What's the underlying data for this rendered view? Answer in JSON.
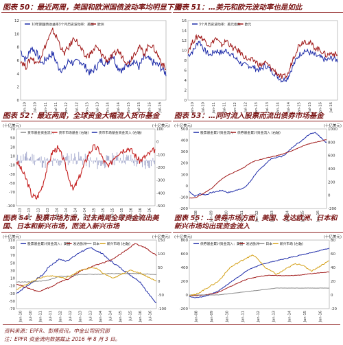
{
  "panels": [
    {
      "title": "图表 50：最近两周，美国和欧洲国债波动率均明显下滑"
    },
    {
      "title": "图表 51：…美元和欧元波动率也是如此"
    },
    {
      "title": "图表 52：最近两周，全球资金大幅流入货币基金"
    },
    {
      "title": "图表 53：…同时流入股票而流出债券市场基金"
    },
    {
      "title": "图表 54：股票市场方面，过去两周全球资金流出美国、日本和新兴市场，而流入新兴市场"
    },
    {
      "title": "图表 55：…债券市场方面，美国、发达欧洲、日本和新兴市场均出现资金流入"
    }
  ],
  "footer": {
    "source": "资料来源：EPFR、彭博资讯，中金公司研究部",
    "note": "注：EPFR 资金流向数据截止 2016 年 8 月 3 日。"
  },
  "chart_data": [
    {
      "type": "line",
      "legend": [
        "10年期国债收益率3个月历史波动率：美国",
        "欧洲"
      ],
      "colors": [
        "#1c2aa8",
        "#a01818"
      ],
      "ylim": [
        0,
        12
      ],
      "yticks": [
        "0",
        "2",
        "4",
        "6",
        "8",
        "10",
        "12"
      ],
      "xticks": [
        "Jan-10",
        "Jul-10",
        "Jan-11",
        "Jul-11",
        "Jan-12",
        "Jul-12",
        "Jan-13",
        "Jul-13",
        "Jan-14",
        "Jul-14",
        "Jan-15",
        "Jul-15",
        "Jan-16",
        "Jul-16"
      ],
      "series": [
        {
          "name": "10年期国债收益率3个月历史波动率：美国",
          "values": [
            7.5,
            6,
            8,
            7,
            5.5,
            6.5,
            7,
            5,
            4.5,
            6,
            5.5,
            6,
            5,
            4,
            5,
            6,
            5.5,
            7,
            5,
            4.5,
            5.5,
            6,
            5,
            6.5,
            6,
            5.5,
            5,
            4
          ]
        },
        {
          "name": "欧洲",
          "values": [
            6,
            5,
            6.5,
            5.5,
            7,
            9,
            10.5,
            9,
            7,
            8,
            9.5,
            8,
            6.5,
            7,
            8,
            7,
            6,
            6.5,
            7.5,
            6.5,
            5.5,
            7,
            8,
            7,
            8.5,
            7.5,
            6,
            4.5
          ]
        }
      ]
    },
    {
      "type": "line",
      "legend": [
        "3个月历史波动率：美元指数",
        "欧元"
      ],
      "colors": [
        "#1c2aa8",
        "#a01818"
      ],
      "ylim": [
        0,
        16
      ],
      "yticks": [
        "0",
        "2",
        "4",
        "6",
        "8",
        "10",
        "12",
        "14",
        "16"
      ],
      "xticks": [
        "Jan-10",
        "Jul-10",
        "Jan-11",
        "Jul-11",
        "Jan-12",
        "Jul-12",
        "Jan-13",
        "Jul-13",
        "Jan-14",
        "Jul-14",
        "Jan-15",
        "Jul-15",
        "Jan-16",
        "Jul-16"
      ],
      "series": [
        {
          "name": "3个月历史波动率：美元指数",
          "values": [
            9,
            10,
            12,
            10,
            9,
            10,
            9.5,
            10,
            9,
            8,
            7,
            7,
            6.5,
            6,
            7,
            6,
            5,
            4,
            4.5,
            7,
            9,
            10,
            9.5,
            9,
            8.5,
            8,
            8.5,
            8
          ]
        },
        {
          "name": "欧元",
          "values": [
            10,
            12,
            13,
            12,
            11,
            12.5,
            11,
            12,
            10.5,
            10,
            9,
            8,
            8,
            7,
            7.5,
            6.5,
            5.5,
            4.5,
            5,
            8.5,
            11,
            12,
            11.5,
            10.5,
            10,
            9,
            9.5,
            9
          ]
        }
      ]
    },
    {
      "type": "bar",
      "yunit_left": "(十亿美元)",
      "yunit_right": "(十亿美元)",
      "legend": [
        "货币基金资金流入",
        "货币市场基金 (右轴)",
        "货币市场基金资金流入 (右轴)"
      ],
      "ylim_left": [
        -100,
        70
      ],
      "ylim_right": [
        -500,
        100
      ],
      "yticks_left": [
        "70",
        "50",
        "30",
        "10",
        "-10",
        "-30",
        "-50",
        "-70",
        "-100"
      ],
      "yticks_right": [
        "100",
        "0",
        "-100",
        "-200",
        "-300",
        "-400",
        "-500"
      ],
      "xticks": [
        "Jan-13",
        "Apr-13",
        "Jul-13",
        "Oct-13",
        "Jan-14",
        "Apr-14",
        "Jul-14",
        "Oct-14",
        "Jan-15",
        "Apr-15",
        "Jul-15",
        "Oct-15",
        "Jan-16",
        "Apr-16",
        "Jul-16"
      ],
      "series": [
        {
          "name": "累计 (右轴)",
          "values": [
            -150,
            -220,
            -300,
            -420,
            -440,
            -350,
            -200,
            -80,
            -50,
            -120,
            -250,
            -380,
            -300,
            -200,
            -100,
            -40,
            -60,
            -150,
            -200,
            -120,
            -80,
            -60,
            -50,
            -100,
            -150,
            -120,
            -90,
            -60
          ]
        }
      ]
    },
    {
      "type": "line",
      "yunit_left": "(十亿美元)",
      "yunit_right": "(十亿美元)",
      "legend": [
        "股票基金累计资金流入",
        "债券基金累计资金流入 (右轴)"
      ],
      "colors": [
        "#1c2aa8",
        "#a01818"
      ],
      "ylim_left": [
        -200,
        500
      ],
      "ylim_right": [
        -200,
        1000
      ],
      "yticks_left": [
        "500",
        "400",
        "300",
        "200",
        "100",
        "0",
        "-100",
        "-200"
      ],
      "yticks_right": [
        "1000",
        "800",
        "600",
        "400",
        "200",
        "0",
        "-200"
      ],
      "xticks": [
        "Jan-08",
        "Jan-09",
        "Jan-10",
        "Jan-11",
        "Jan-12",
        "Jan-13",
        "Jan-14",
        "Jan-15",
        "Jan-16"
      ],
      "series": [
        {
          "name": "股票基金累计资金流入",
          "values": [
            -50,
            -90,
            -70,
            -80,
            -60,
            -50,
            -40,
            -60,
            -50,
            -30,
            -20,
            30,
            100,
            150,
            200,
            240,
            250,
            260,
            300,
            350,
            380,
            420,
            460,
            470,
            420,
            380
          ]
        },
        {
          "name": "债券基金累计资金流入 (右轴)",
          "values": [
            -40,
            -40,
            0,
            50,
            100,
            180,
            250,
            300,
            340,
            380,
            420,
            480,
            520,
            540,
            560,
            580,
            600,
            620,
            650,
            680,
            720,
            750,
            780,
            800,
            820,
            840
          ]
        }
      ]
    },
    {
      "type": "line",
      "yunit_left": "(十亿美元)",
      "yunit_right": "(十亿美元)",
      "legend": [
        "股票基金累计资金流入：美国",
        "发达欧洲",
        "日本",
        "新兴市场 (右轴)"
      ],
      "colors": [
        "#1c2aa8",
        "#a01818",
        "#888888",
        "#d4a017"
      ],
      "ylim_left": [
        -70,
        110
      ],
      "ylim_right": [
        -100,
        150
      ],
      "yticks_left": [
        "110",
        "90",
        "70",
        "50",
        "30",
        "10",
        "-10",
        "-30",
        "-50",
        "-70"
      ],
      "yticks_right": [
        "150",
        "100",
        "50",
        "0",
        "-50",
        "-100"
      ],
      "xticks": [
        "Jan-10",
        "Jul-10",
        "Jan-11",
        "Jul-11",
        "Jan-12",
        "Jul-12",
        "Jan-13",
        "Jul-13",
        "Jan-14",
        "Jul-14",
        "Jan-15",
        "Jul-15",
        "Jan-16",
        "Jul-16"
      ],
      "series": [
        {
          "name": "股票基金累计资金流入：美国",
          "values": [
            -30,
            -20,
            -10,
            0,
            10,
            20,
            40,
            50,
            60,
            55,
            60,
            70,
            80,
            85,
            90,
            80,
            75,
            60,
            50,
            40,
            30,
            20,
            10,
            0,
            -20,
            -40,
            -55
          ]
        },
        {
          "name": "发达欧洲",
          "values": [
            -5,
            -10,
            -15,
            -20,
            -25,
            -20,
            -15,
            -10,
            0,
            5,
            10,
            20,
            30,
            35,
            40,
            45,
            50,
            55,
            60,
            70,
            80,
            90,
            100,
            95,
            90,
            80,
            70
          ]
        },
        {
          "name": "日本",
          "values": [
            0,
            0,
            0,
            0,
            2,
            3,
            5,
            10,
            15,
            15,
            15,
            18,
            20,
            20,
            20,
            20,
            20,
            22,
            22,
            22,
            22,
            23,
            22,
            22,
            21,
            20,
            20
          ]
        },
        {
          "name": "新兴市场 (右轴)",
          "values": [
            -30,
            -20,
            -10,
            0,
            10,
            15,
            20,
            18,
            15,
            10,
            20,
            30,
            40,
            45,
            50,
            45,
            30,
            20,
            10,
            20,
            30,
            40,
            35,
            30,
            20,
            10,
            0
          ]
        }
      ]
    },
    {
      "type": "line",
      "yunit_left": "(十亿美元)",
      "yunit_right": "(十亿美元)",
      "legend": [
        "债券基金累计资金流入：美国",
        "发达欧洲",
        "日本",
        "新兴市场 (右轴)"
      ],
      "colors": [
        "#1c2aa8",
        "#a01818",
        "#888888",
        "#d4a017"
      ],
      "ylim_left": [
        -200,
        800
      ],
      "ylim_right": [
        -20,
        80
      ],
      "yticks_left": [
        "800",
        "600",
        "400",
        "200",
        "0",
        "-200"
      ],
      "yticks_right": [
        "80",
        "60",
        "40",
        "20",
        "0",
        "-20"
      ],
      "xticks": [
        "Jan-08",
        "Jan-09",
        "Jan-10",
        "Jan-11",
        "Jan-12",
        "Jan-13",
        "Jan-14",
        "Jan-15",
        "Jan-16"
      ],
      "series": [
        {
          "name": "债券基金累计资金流入：美国",
          "values": [
            -20,
            -40,
            -30,
            -10,
            20,
            60,
            120,
            180,
            240,
            300,
            360,
            400,
            430,
            460,
            480,
            500,
            520,
            540,
            560,
            580,
            600,
            620,
            640,
            660,
            680
          ]
        },
        {
          "name": "发达欧洲",
          "values": [
            -5,
            -10,
            -5,
            5,
            20,
            40,
            80,
            120,
            160,
            200,
            230,
            250,
            270,
            280,
            285,
            285,
            280,
            280,
            285,
            290,
            300,
            310,
            320,
            330,
            335
          ]
        },
        {
          "name": "日本",
          "values": [
            0,
            0,
            0,
            0,
            0,
            0,
            10,
            20,
            30,
            40,
            50,
            60,
            70,
            80,
            90,
            100,
            100,
            100,
            100,
            100,
            100,
            100,
            100,
            100,
            100
          ]
        },
        {
          "name": "新兴市场 (右轴)",
          "values": [
            0,
            0,
            5,
            10,
            15,
            20,
            30,
            40,
            45,
            50,
            55,
            58,
            50,
            40,
            35,
            30,
            35,
            40,
            45,
            45,
            40,
            35,
            40,
            45,
            50
          ]
        }
      ]
    }
  ]
}
